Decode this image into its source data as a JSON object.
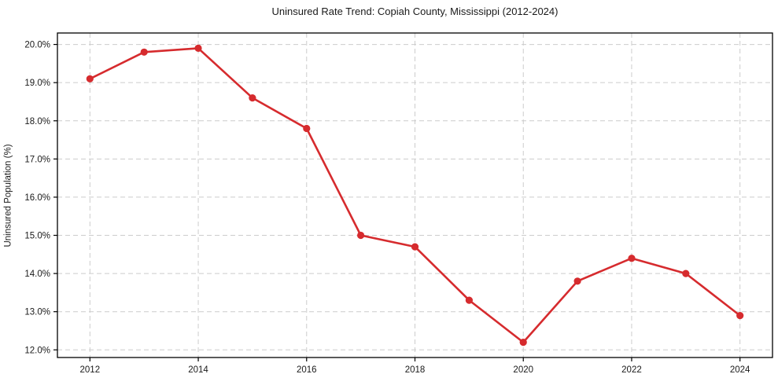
{
  "page": {
    "background_color": "#ffffff",
    "text_color": "#1a1a1a"
  },
  "chart_data": {
    "type": "line",
    "title": "Uninsured Rate Trend: Copiah County, Mississippi (2012-2024)",
    "xlabel": "",
    "ylabel": "Uninsured Population (%)",
    "x": [
      2012,
      2013,
      2014,
      2015,
      2016,
      2017,
      2018,
      2019,
      2020,
      2021,
      2022,
      2023,
      2024
    ],
    "series": [
      {
        "name": "Uninsured Population (%)",
        "values": [
          19.1,
          19.8,
          19.9,
          18.6,
          17.8,
          15.0,
          14.7,
          13.3,
          12.2,
          13.8,
          14.4,
          14.0,
          12.9
        ]
      }
    ],
    "x_tick_values": [
      2012,
      2014,
      2016,
      2018,
      2020,
      2022,
      2024
    ],
    "x_tick_labels": [
      "2012",
      "2014",
      "2016",
      "2018",
      "2020",
      "2022",
      "2024"
    ],
    "y_tick_values": [
      12,
      13,
      14,
      15,
      16,
      17,
      18,
      19,
      20
    ],
    "y_tick_labels": [
      "12.0%",
      "13.0%",
      "14.0%",
      "15.0%",
      "16.0%",
      "17.0%",
      "18.0%",
      "19.0%",
      "20.0%"
    ],
    "xlim": [
      2011.4,
      2024.6
    ],
    "ylim": [
      11.8,
      20.3
    ],
    "grid": true,
    "grid_style": "dashed",
    "legend_position": "none",
    "line_color": "#d62b2e",
    "marker": "circle",
    "grid_color": "#cccccc",
    "spine_color": "#000000"
  }
}
